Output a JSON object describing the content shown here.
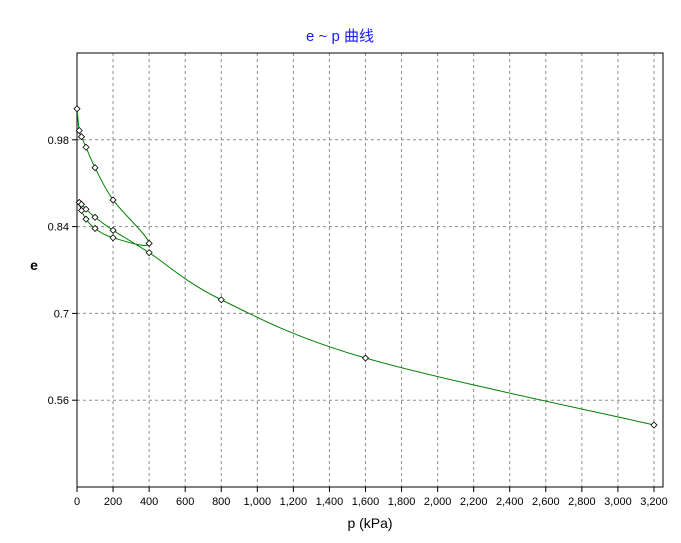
{
  "chart_data": {
    "type": "line",
    "title": "e ~ p 曲线",
    "xlabel": "p (kPa)",
    "ylabel": "e",
    "xlim": [
      0,
      3250
    ],
    "ylim": [
      0.42,
      1.12
    ],
    "x_ticks": [
      0,
      200,
      400,
      600,
      800,
      1000,
      1200,
      1400,
      1600,
      1800,
      2000,
      2200,
      2400,
      2600,
      2800,
      3000,
      3200
    ],
    "x_tick_labels": [
      "0",
      "200",
      "400",
      "600",
      "800",
      "1,000",
      "1,200",
      "1,400",
      "1,600",
      "1,800",
      "2,000",
      "2,200",
      "2,400",
      "2,600",
      "2,800",
      "3,000",
      "3,200"
    ],
    "y_ticks": [
      0.56,
      0.7,
      0.84,
      0.98
    ],
    "y_tick_labels": [
      "0.56",
      "0.7",
      "0.84",
      "0.98"
    ],
    "grid": true,
    "line_color": "#008000",
    "marker": "diamond",
    "series": [
      {
        "points": [
          {
            "x": 0,
            "y": 1.03
          },
          {
            "x": 12.5,
            "y": 0.995
          },
          {
            "x": 25,
            "y": 0.985
          },
          {
            "x": 50,
            "y": 0.968
          },
          {
            "x": 100,
            "y": 0.935
          },
          {
            "x": 200,
            "y": 0.883
          },
          {
            "x": 400,
            "y": 0.813
          },
          {
            "x": 200,
            "y": 0.822
          },
          {
            "x": 100,
            "y": 0.837
          },
          {
            "x": 50,
            "y": 0.852
          },
          {
            "x": 25,
            "y": 0.866
          },
          {
            "x": 12.5,
            "y": 0.879
          },
          {
            "x": 25,
            "y": 0.876
          },
          {
            "x": 50,
            "y": 0.868
          },
          {
            "x": 100,
            "y": 0.855
          },
          {
            "x": 200,
            "y": 0.834
          },
          {
            "x": 400,
            "y": 0.798
          },
          {
            "x": 800,
            "y": 0.722
          },
          {
            "x": 1600,
            "y": 0.628
          },
          {
            "x": 3200,
            "y": 0.52
          }
        ]
      }
    ]
  }
}
